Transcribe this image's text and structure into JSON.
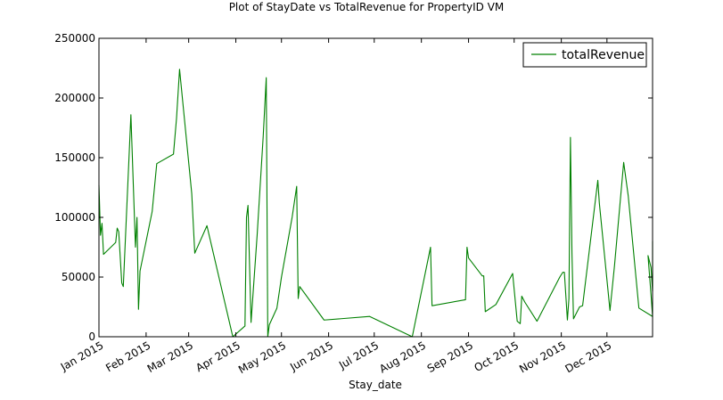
{
  "chart_data": {
    "type": "line",
    "title": "Plot of StayDate vs TotalRevenue for PropertyID VM",
    "xlabel": "Stay_date",
    "ylabel": "",
    "xlim": [
      "2015-01-01",
      "2015-12-31"
    ],
    "ylim": [
      0,
      250000
    ],
    "x_ticks": [
      {
        "date": "2015-01-01",
        "label": "Jan 2015"
      },
      {
        "date": "2015-02-01",
        "label": "Feb 2015"
      },
      {
        "date": "2015-03-01",
        "label": "Mar 2015"
      },
      {
        "date": "2015-04-01",
        "label": "Apr 2015"
      },
      {
        "date": "2015-05-01",
        "label": "May 2015"
      },
      {
        "date": "2015-06-01",
        "label": "Jun 2015"
      },
      {
        "date": "2015-07-01",
        "label": "Jul 2015"
      },
      {
        "date": "2015-08-01",
        "label": "Aug 2015"
      },
      {
        "date": "2015-09-01",
        "label": "Sep 2015"
      },
      {
        "date": "2015-10-01",
        "label": "Oct 2015"
      },
      {
        "date": "2015-11-01",
        "label": "Nov 2015"
      },
      {
        "date": "2015-12-01",
        "label": "Dec 2015"
      }
    ],
    "y_ticks": [
      {
        "value": 0,
        "label": "0"
      },
      {
        "value": 50000,
        "label": "50000"
      },
      {
        "value": 100000,
        "label": "100000"
      },
      {
        "value": 150000,
        "label": "150000"
      },
      {
        "value": 200000,
        "label": "200000"
      },
      {
        "value": 250000,
        "label": "250000"
      }
    ],
    "grid": false,
    "legend_position": "top-right",
    "series": [
      {
        "name": "totalRevenue",
        "color": "#008000",
        "points": [
          [
            "2015-01-01",
            127000
          ],
          [
            "2015-01-02",
            85000
          ],
          [
            "2015-01-03",
            95000
          ],
          [
            "2015-01-04",
            69000
          ],
          [
            "2015-01-12",
            79000
          ],
          [
            "2015-01-13",
            91000
          ],
          [
            "2015-01-14",
            88000
          ],
          [
            "2015-01-16",
            45000
          ],
          [
            "2015-01-17",
            42000
          ],
          [
            "2015-01-22",
            186000
          ],
          [
            "2015-01-25",
            75000
          ],
          [
            "2015-01-26",
            100000
          ],
          [
            "2015-01-27",
            23000
          ],
          [
            "2015-01-28",
            55000
          ],
          [
            "2015-02-05",
            105000
          ],
          [
            "2015-02-08",
            145000
          ],
          [
            "2015-02-19",
            153000
          ],
          [
            "2015-02-21",
            183000
          ],
          [
            "2015-02-23",
            224000
          ],
          [
            "2015-03-03",
            120000
          ],
          [
            "2015-03-05",
            70000
          ],
          [
            "2015-03-13",
            93000
          ],
          [
            "2015-03-30",
            0
          ],
          [
            "2015-04-07",
            9000
          ],
          [
            "2015-04-08",
            100000
          ],
          [
            "2015-04-09",
            110000
          ],
          [
            "2015-04-11",
            12000
          ],
          [
            "2015-04-15",
            85000
          ],
          [
            "2015-04-19",
            168000
          ],
          [
            "2015-04-21",
            217000
          ],
          [
            "2015-04-22",
            0
          ],
          [
            "2015-04-23",
            10000
          ],
          [
            "2015-04-28",
            24000
          ],
          [
            "2015-05-01",
            50000
          ],
          [
            "2015-05-08",
            100000
          ],
          [
            "2015-05-11",
            126000
          ],
          [
            "2015-05-12",
            32000
          ],
          [
            "2015-05-13",
            42000
          ],
          [
            "2015-05-29",
            14000
          ],
          [
            "2015-06-28",
            17000
          ],
          [
            "2015-07-26",
            0
          ],
          [
            "2015-08-07",
            75000
          ],
          [
            "2015-08-08",
            26000
          ],
          [
            "2015-08-30",
            31000
          ],
          [
            "2015-08-31",
            75000
          ],
          [
            "2015-09-01",
            66000
          ],
          [
            "2015-09-10",
            51000
          ],
          [
            "2015-09-11",
            51000
          ],
          [
            "2015-09-12",
            21000
          ],
          [
            "2015-09-19",
            27000
          ],
          [
            "2015-09-30",
            53000
          ],
          [
            "2015-10-03",
            13000
          ],
          [
            "2015-10-05",
            11000
          ],
          [
            "2015-10-06",
            34000
          ],
          [
            "2015-10-08",
            29000
          ],
          [
            "2015-10-16",
            13000
          ],
          [
            "2015-10-31",
            50000
          ],
          [
            "2015-11-02",
            54000
          ],
          [
            "2015-11-03",
            54000
          ],
          [
            "2015-11-05",
            14000
          ],
          [
            "2015-11-06",
            32000
          ],
          [
            "2015-11-07",
            167000
          ],
          [
            "2015-11-08",
            70000
          ],
          [
            "2015-11-09",
            15000
          ],
          [
            "2015-11-13",
            25000
          ],
          [
            "2015-11-15",
            26000
          ],
          [
            "2015-11-25",
            131000
          ],
          [
            "2015-11-26",
            112000
          ],
          [
            "2015-12-03",
            22000
          ],
          [
            "2015-12-06",
            60000
          ],
          [
            "2015-12-12",
            146000
          ],
          [
            "2015-12-15",
            118000
          ],
          [
            "2015-12-22",
            24000
          ],
          [
            "2015-12-31",
            17000
          ],
          [
            "2015-12-30",
            35000
          ],
          [
            "2015-12-28",
            68000
          ],
          [
            "2015-12-30",
            58000
          ],
          [
            "2015-12-31",
            38000
          ],
          [
            "2015-12-31",
            80000
          ]
        ]
      }
    ]
  }
}
